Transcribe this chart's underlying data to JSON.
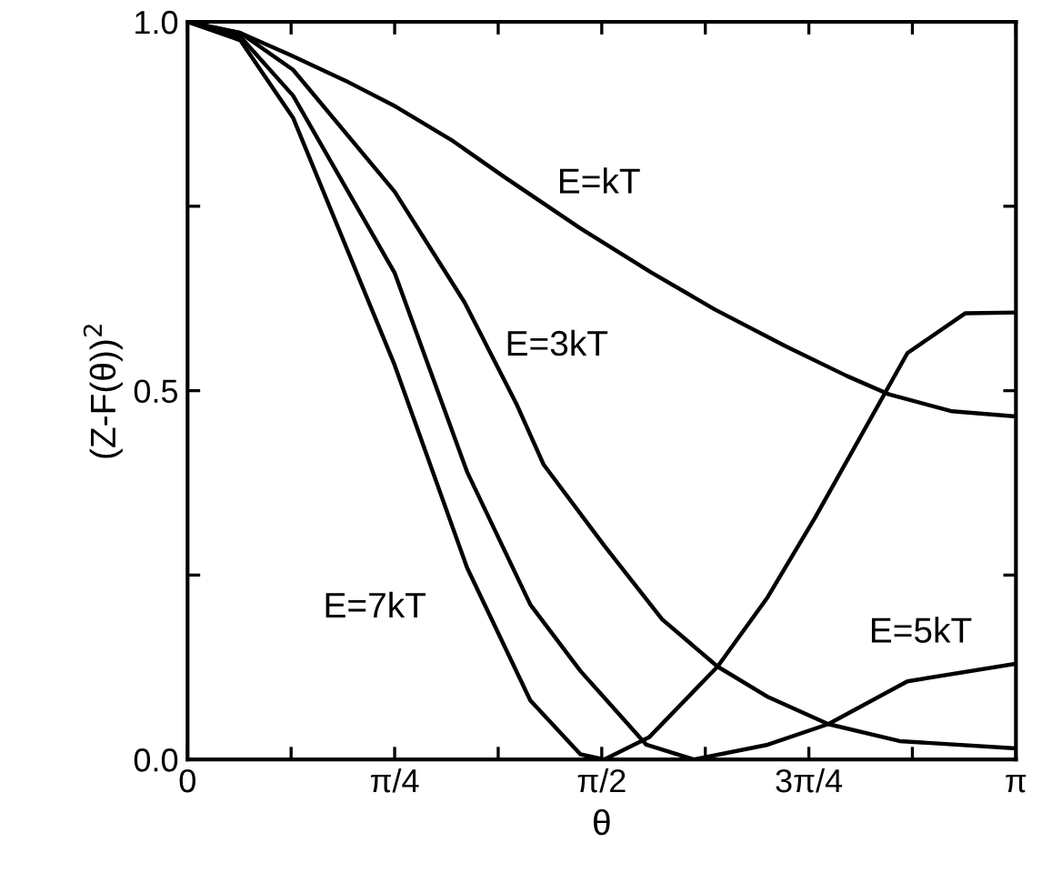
{
  "chart_data": {
    "type": "line",
    "xlabel": "θ",
    "ylabel": "(Z-F(θ))$^{2}$",
    "xlim": [
      0,
      3.1416
    ],
    "ylim": [
      0,
      1
    ],
    "xticks": [
      {
        "value": 0,
        "label": "0"
      },
      {
        "value": 0.3927,
        "label": null
      },
      {
        "value": 0.7854,
        "label": "π/4"
      },
      {
        "value": 1.1781,
        "label": null
      },
      {
        "value": 1.5708,
        "label": "π/2"
      },
      {
        "value": 1.9635,
        "label": null
      },
      {
        "value": 2.3562,
        "label": "3π/4"
      },
      {
        "value": 2.7489,
        "label": null
      },
      {
        "value": 3.1416,
        "label": "π"
      }
    ],
    "yticks": [
      {
        "value": 0,
        "label": "0.0"
      },
      {
        "value": 0.25,
        "label": null
      },
      {
        "value": 0.5,
        "label": "0.5"
      },
      {
        "value": 0.75,
        "label": null
      },
      {
        "value": 1,
        "label": "1.0"
      }
    ],
    "grid": false,
    "legend": false,
    "marker": "none",
    "line_style": "solid",
    "series": [
      {
        "name": "E=kT",
        "color": "#000000",
        "x": [
          0,
          0.2,
          0.39,
          0.6,
          0.79,
          1.0,
          1.2,
          1.49,
          1.76,
          2.0,
          2.27,
          2.5,
          2.66,
          2.9,
          3.1416
        ],
        "values": [
          1.0,
          0.985,
          0.955,
          0.92,
          0.885,
          0.84,
          0.79,
          0.72,
          0.66,
          0.61,
          0.56,
          0.52,
          0.495,
          0.472,
          0.465
        ]
      },
      {
        "name": "E=3kT",
        "color": "#000000",
        "x": [
          0,
          0.2,
          0.4,
          0.785,
          1.05,
          1.25,
          1.35,
          1.58,
          1.8,
          2.01,
          2.2,
          2.43,
          2.7,
          3.1416
        ],
        "values": [
          1.0,
          0.985,
          0.935,
          0.77,
          0.62,
          0.48,
          0.4,
          0.29,
          0.19,
          0.126,
          0.085,
          0.048,
          0.025,
          0.015
        ]
      },
      {
        "name": "E=5kT",
        "color": "#000000",
        "x": [
          0,
          0.2,
          0.4,
          0.785,
          1.06,
          1.3,
          1.49,
          1.74,
          1.92,
          2.2,
          2.43,
          2.73,
          3.1416
        ],
        "values": [
          1.0,
          0.98,
          0.9,
          0.66,
          0.39,
          0.21,
          0.12,
          0.02,
          0.0,
          0.02,
          0.048,
          0.106,
          0.13
        ]
      },
      {
        "name": "E=7kT",
        "color": "#000000",
        "x": [
          0,
          0.2,
          0.4,
          0.785,
          1.06,
          1.3,
          1.49,
          1.58,
          1.75,
          2.01,
          2.2,
          2.38,
          2.73,
          2.95,
          3.1416
        ],
        "values": [
          1.0,
          0.975,
          0.87,
          0.535,
          0.26,
          0.08,
          0.007,
          0.0,
          0.03,
          0.126,
          0.22,
          0.328,
          0.551,
          0.605,
          0.606
        ]
      }
    ]
  }
}
